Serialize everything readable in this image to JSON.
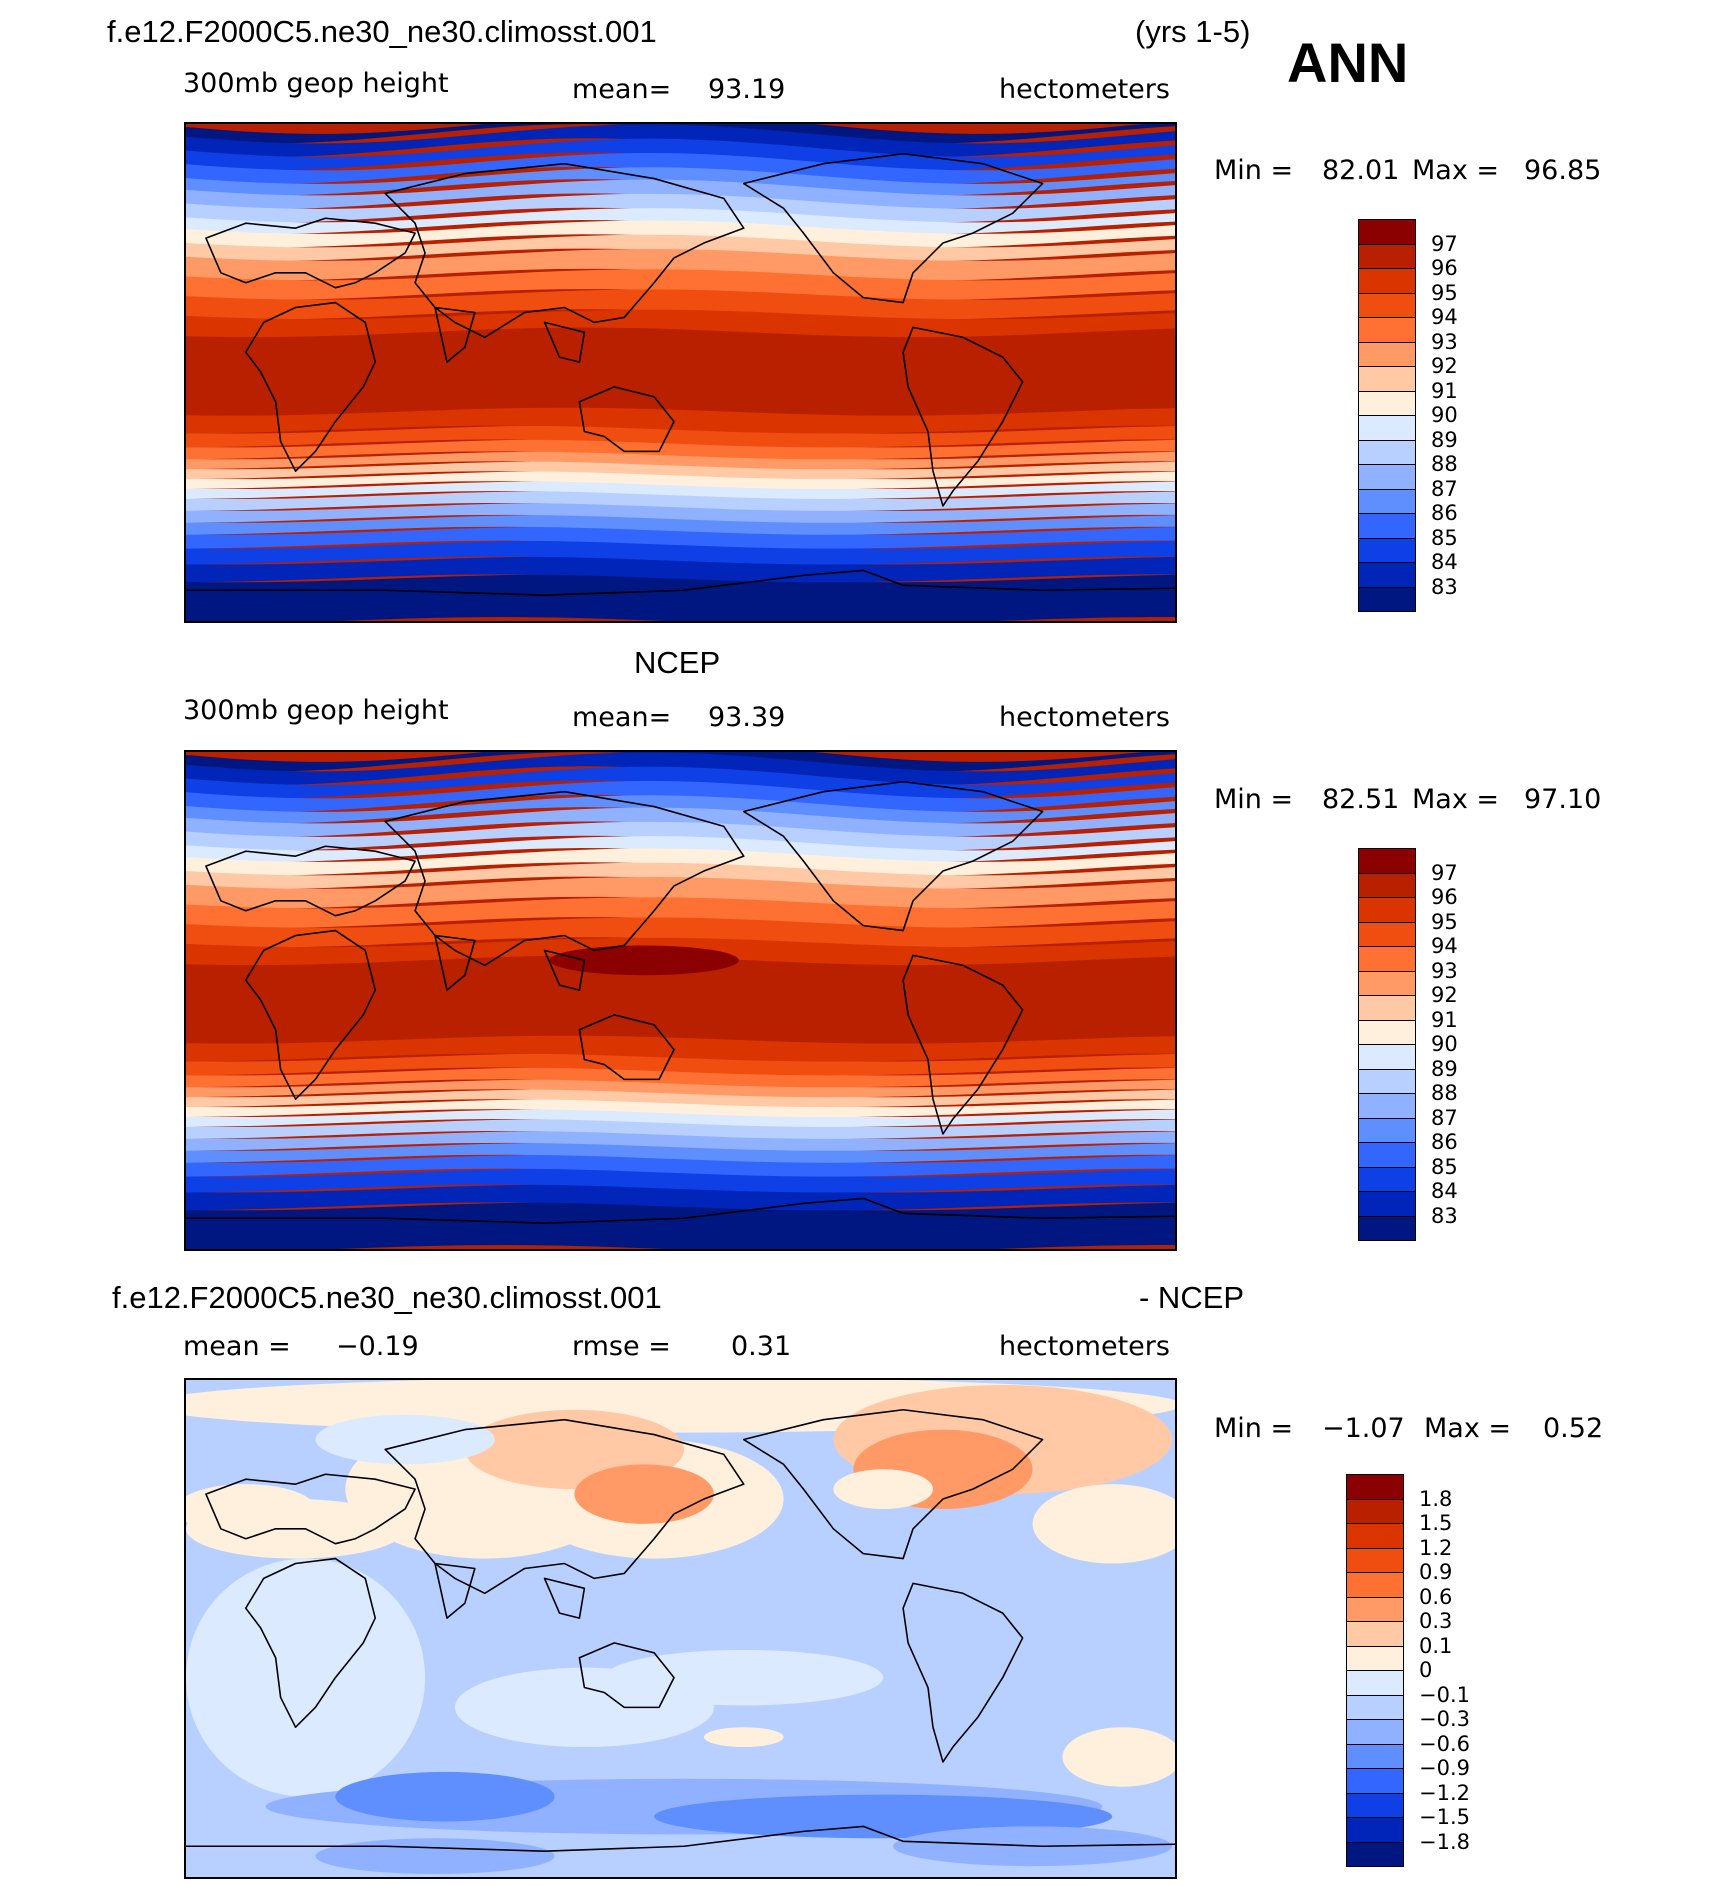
{
  "header": {
    "case_title": "f.e12.F2000C5.ne30_ne30.climosst.001",
    "years": "(yrs 1-5)",
    "season": "ANN"
  },
  "panels": [
    {
      "id": "model",
      "title": "",
      "variable": "300mb geop height",
      "stat_label": "mean=",
      "stat_value": "93.19",
      "units": "hectometers",
      "min_label": "Min =",
      "min_value": "82.01",
      "max_label": "Max =",
      "max_value": "96.85",
      "levels": [
        "97",
        "96",
        "95",
        "94",
        "93",
        "92",
        "91",
        "90",
        "89",
        "88",
        "87",
        "86",
        "85",
        "84",
        "83"
      ],
      "colors": [
        "#8b0000",
        "#b82000",
        "#da3500",
        "#f04d10",
        "#ff7033",
        "#ff9a66",
        "#ffc9a6",
        "#fff0dd",
        "#dbeaff",
        "#b8d0ff",
        "#8fb1ff",
        "#5f8fff",
        "#3366ff",
        "#0f40e6",
        "#0025b8",
        "#001680"
      ],
      "warm_pool": false
    },
    {
      "id": "obs",
      "title": "NCEP",
      "variable": "300mb geop height",
      "stat_label": "mean=",
      "stat_value": "93.39",
      "units": "hectometers",
      "min_label": "Min =",
      "min_value": "82.51",
      "max_label": "Max =",
      "max_value": "97.10",
      "levels": [
        "97",
        "96",
        "95",
        "94",
        "93",
        "92",
        "91",
        "90",
        "89",
        "88",
        "87",
        "86",
        "85",
        "84",
        "83"
      ],
      "colors": [
        "#8b0000",
        "#b82000",
        "#da3500",
        "#f04d10",
        "#ff7033",
        "#ff9a66",
        "#ffc9a6",
        "#fff0dd",
        "#dbeaff",
        "#b8d0ff",
        "#8fb1ff",
        "#5f8fff",
        "#3366ff",
        "#0f40e6",
        "#0025b8",
        "#001680"
      ],
      "warm_pool": true
    },
    {
      "id": "diff",
      "title_left": "f.e12.F2000C5.ne30_ne30.climosst.001",
      "title_right": "- NCEP",
      "stat_label": "mean =",
      "stat_value": "−0.19",
      "stat2_label": "rmse =",
      "stat2_value": "0.31",
      "units": "hectometers",
      "min_label": "Min =",
      "min_value": "−1.07",
      "max_label": "Max =",
      "max_value": "0.52",
      "levels": [
        "1.8",
        "1.5",
        "1.2",
        "0.9",
        "0.6",
        "0.3",
        "0.1",
        "0",
        "−0.1",
        "−0.3",
        "−0.6",
        "−0.9",
        "−1.2",
        "−1.5",
        "−1.8"
      ],
      "colors": [
        "#8b0000",
        "#b82000",
        "#da3500",
        "#f04d10",
        "#ff7033",
        "#ff9a66",
        "#ffc9a6",
        "#fff0dd",
        "#dbeaff",
        "#b8d0ff",
        "#8fb1ff",
        "#5f8fff",
        "#3366ff",
        "#0f40e6",
        "#0025b8",
        "#001680"
      ]
    }
  ]
}
